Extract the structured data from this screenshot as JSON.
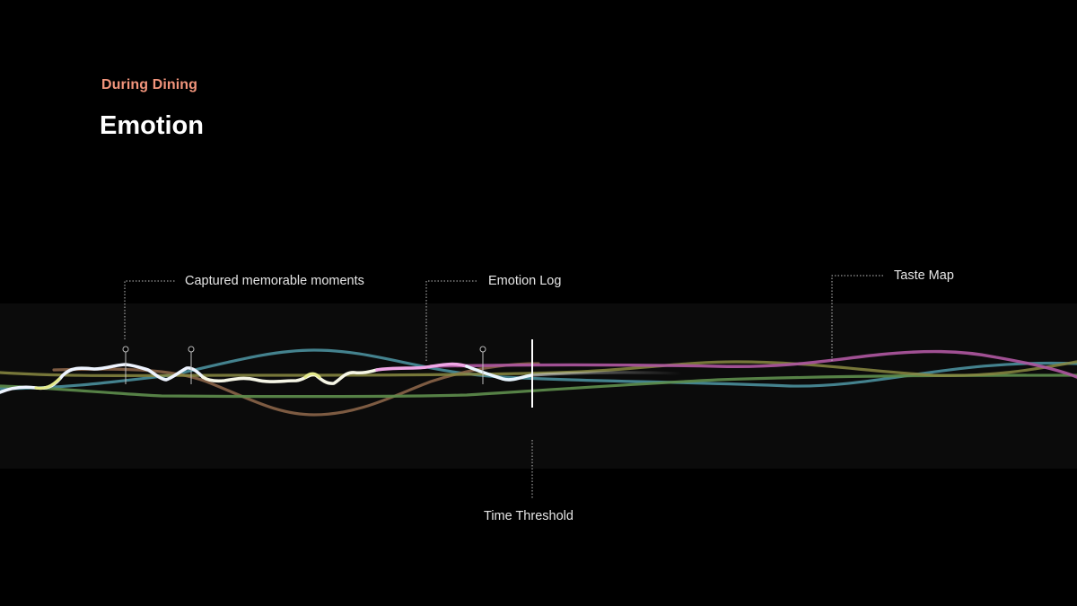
{
  "header": {
    "eyebrow": "During Dining",
    "title": "Emotion"
  },
  "annotations": {
    "captured_moments": "Captured memorable moments",
    "emotion_log": "Emotion Log",
    "taste_map": "Taste Map",
    "time_threshold": "Time Threshold"
  },
  "colors": {
    "eyebrow": "#f2957c",
    "title": "#ffffff",
    "background": "#000000",
    "band": "#0b0b0b",
    "line_blue": "#4f98a6",
    "line_brown": "#8a6448",
    "line_green": "#5e8e4c",
    "line_olive": "#8a8a42",
    "line_purple": "#b058a2",
    "line_white": "#ffffff",
    "line_pink": "#f0a6e6",
    "line_yellow": "#e4ea8c"
  }
}
